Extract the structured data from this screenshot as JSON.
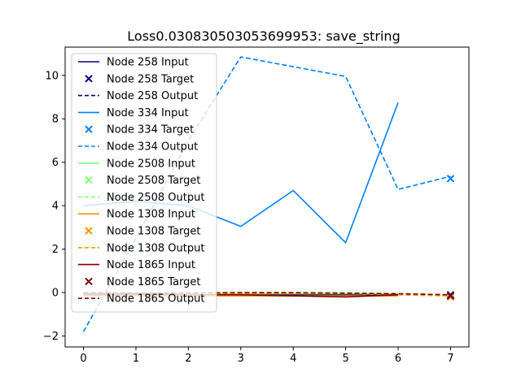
{
  "chart_data": {
    "type": "line",
    "title": "Loss0.030830503053699953: save_string",
    "xlabel": "",
    "ylabel": "",
    "xlim": [
      -0.35,
      7.35
    ],
    "ylim": [
      -2.5,
      11.3
    ],
    "xticks": [
      0,
      1,
      2,
      3,
      4,
      5,
      6,
      7
    ],
    "yticks": [
      -2,
      0,
      2,
      4,
      6,
      8,
      10
    ],
    "grid": false,
    "legend_position": "upper-left",
    "series": [
      {
        "name": "Node 258 Input",
        "kind": "input",
        "color": "#00007f",
        "x": [
          0,
          1,
          2,
          3,
          4,
          5,
          6
        ],
        "values": [
          -0.1,
          -0.1,
          -0.1,
          -0.1,
          -0.1,
          -0.1,
          -0.1
        ]
      },
      {
        "name": "Node 258 Target",
        "kind": "target",
        "color": "#00007f",
        "x": [
          7
        ],
        "values": [
          -0.1
        ]
      },
      {
        "name": "Node 258 Output",
        "kind": "output",
        "color": "#00007f",
        "x": [
          0,
          1,
          2,
          3,
          4,
          5,
          6,
          7
        ],
        "values": [
          -0.05,
          -0.05,
          -0.05,
          -0.05,
          -0.05,
          -0.05,
          -0.05,
          -0.1
        ]
      },
      {
        "name": "Node 334 Input",
        "kind": "input",
        "color": "#0080ff",
        "x": [
          0,
          1,
          2,
          3,
          4,
          5,
          6
        ],
        "values": [
          4.0,
          4.2,
          4.0,
          3.05,
          4.7,
          2.3,
          8.75
        ]
      },
      {
        "name": "Node 334 Target",
        "kind": "target",
        "color": "#0080ff",
        "x": [
          7
        ],
        "values": [
          5.25
        ]
      },
      {
        "name": "Node 334 Output",
        "kind": "output",
        "color": "#0080ff",
        "x": [
          0,
          1,
          2,
          3,
          4,
          5,
          6,
          7
        ],
        "values": [
          -1.8,
          2.5,
          7.0,
          10.85,
          10.4,
          9.95,
          4.75,
          5.35
        ]
      },
      {
        "name": "Node 2508 Input",
        "kind": "input",
        "color": "#7cff79",
        "x": [
          0,
          1,
          2,
          3,
          4,
          5,
          6
        ],
        "values": [
          -0.05,
          -0.05,
          -0.05,
          -0.05,
          -0.05,
          -0.05,
          -0.05
        ]
      },
      {
        "name": "Node 2508 Target",
        "kind": "target",
        "color": "#7cff79",
        "x": [
          7
        ],
        "values": [
          -0.15
        ]
      },
      {
        "name": "Node 2508 Output",
        "kind": "output",
        "color": "#7cff79",
        "x": [
          0,
          1,
          2,
          3,
          4,
          5,
          6,
          7
        ],
        "values": [
          0.0,
          0.0,
          0.0,
          0.0,
          0.0,
          0.0,
          -0.05,
          -0.1
        ]
      },
      {
        "name": "Node 1308 Input",
        "kind": "input",
        "color": "#ff9400",
        "x": [
          0,
          1,
          2,
          3,
          4,
          5,
          6
        ],
        "values": [
          -0.15,
          -0.15,
          -0.15,
          -0.15,
          -0.15,
          -0.15,
          -0.15
        ]
      },
      {
        "name": "Node 1308 Target",
        "kind": "target",
        "color": "#ff9400",
        "x": [
          7
        ],
        "values": [
          -0.2
        ]
      },
      {
        "name": "Node 1308 Output",
        "kind": "output",
        "color": "#ff9400",
        "x": [
          0,
          1,
          2,
          3,
          4,
          5,
          6,
          7
        ],
        "values": [
          -0.05,
          -0.05,
          -0.05,
          -0.05,
          -0.05,
          -0.05,
          -0.1,
          -0.15
        ]
      },
      {
        "name": "Node 1865 Input",
        "kind": "input",
        "color": "#7f0000",
        "x": [
          0,
          1,
          2,
          3,
          4,
          5,
          6
        ],
        "values": [
          -0.05,
          -0.05,
          -0.1,
          -0.1,
          -0.15,
          -0.2,
          -0.1
        ]
      },
      {
        "name": "Node 1865 Target",
        "kind": "target",
        "color": "#7f0000",
        "x": [
          7
        ],
        "values": [
          -0.15
        ]
      },
      {
        "name": "Node 1865 Output",
        "kind": "output",
        "color": "#7f0000",
        "x": [
          0,
          1,
          2,
          3,
          4,
          5,
          6,
          7
        ],
        "values": [
          0.0,
          -0.02,
          -0.02,
          0.0,
          0.0,
          -0.03,
          -0.05,
          -0.1
        ]
      }
    ]
  }
}
